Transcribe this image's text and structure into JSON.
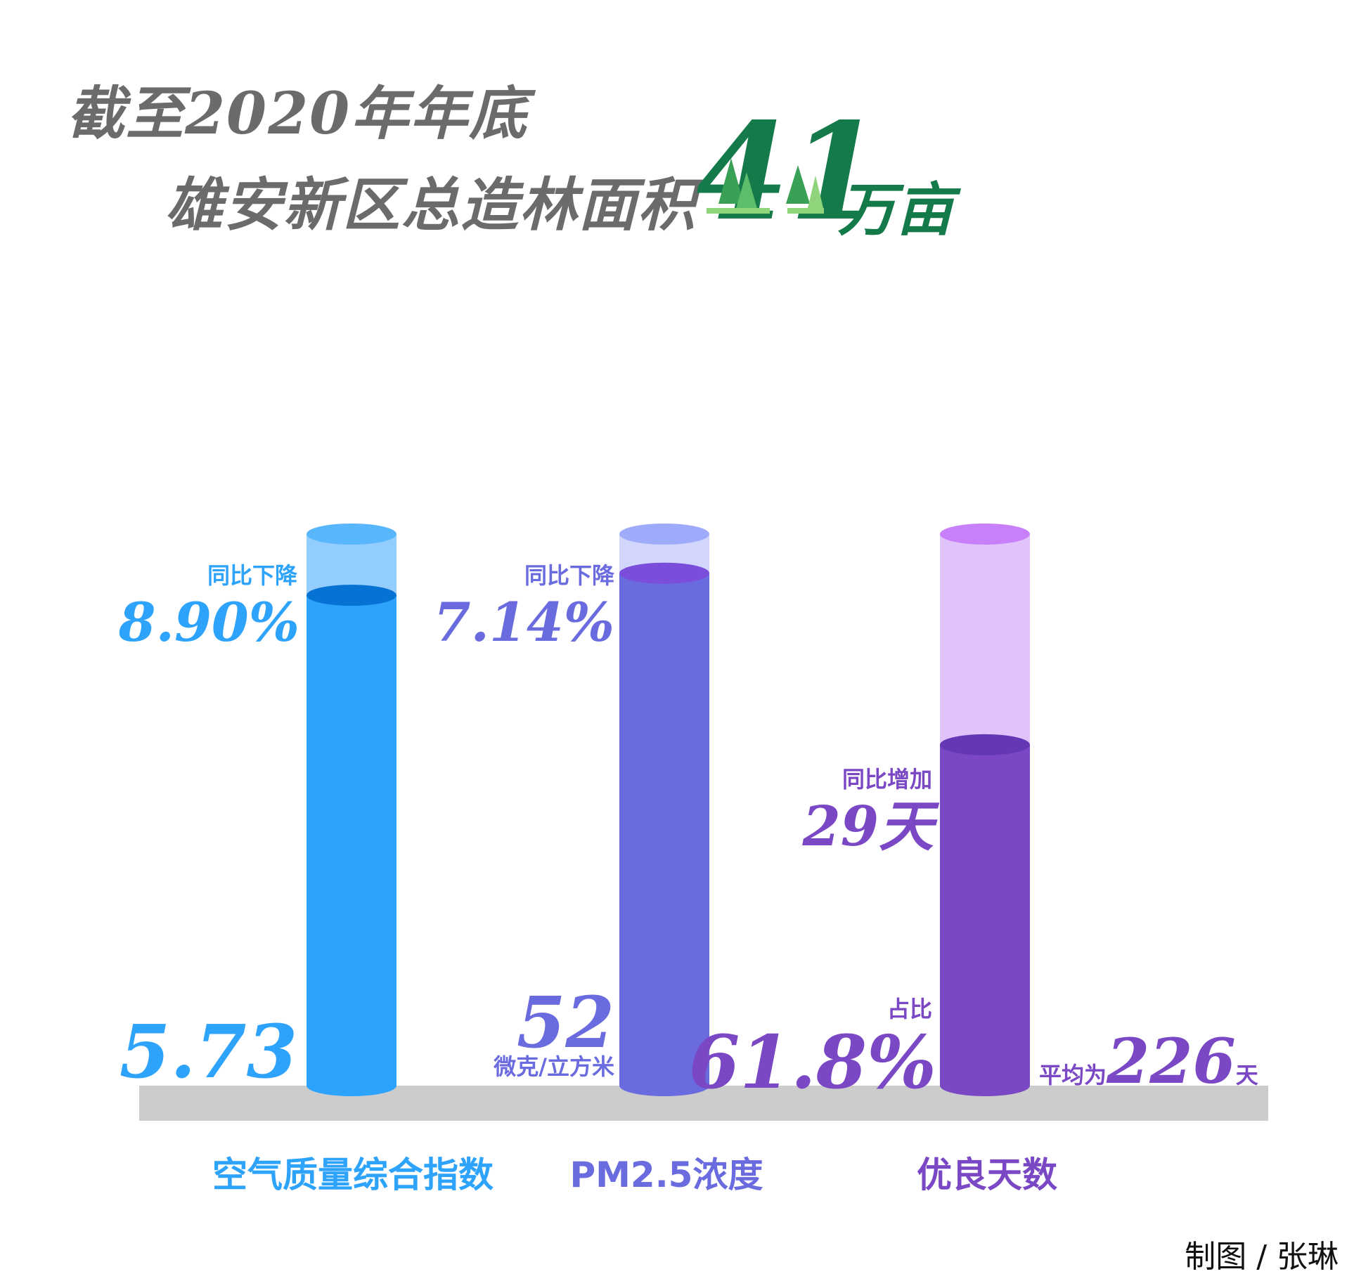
{
  "headline": {
    "line1": "截至2020年年底",
    "line2": "雄安新区总造林面积",
    "value": "41",
    "unit": "万亩"
  },
  "colors": {
    "title_gray": "#6b6b6b",
    "forest_green": "#157a4a",
    "blue": "#2ea3fb",
    "indigo": "#6a6bdf",
    "purple": "#7a48c4",
    "ground": "#cccccc"
  },
  "chart_data": {
    "type": "bar",
    "categories": [
      "空气质量综合指数",
      "PM2.5浓度",
      "优良天数"
    ],
    "series": [
      {
        "values": [
          5.73,
          52,
          61.8
        ],
        "display": [
          "5.73",
          "52",
          "61.8%"
        ]
      }
    ],
    "fill_fraction": [
      0.889,
      0.929,
      0.618
    ],
    "bars": [
      {
        "category": "空气质量综合指数",
        "value_label": "5.73",
        "change_caption": "同比下降",
        "change_value": "8.90%",
        "color": "#2ea3fb",
        "light_color": "#93cdfd",
        "cap_color": "#58b6fc",
        "top_color": "#0673d4"
      },
      {
        "category": "PM2.5浓度",
        "value_label": "52",
        "unit": "微克/立方米",
        "change_caption": "同比下降",
        "change_value": "7.14%",
        "color": "#6a6bdf",
        "light_color": "#d2d6fd",
        "cap_color": "#9eabfa",
        "top_color": "#7a4edb"
      },
      {
        "category": "优良天数",
        "share_caption": "占比",
        "value_label": "61.8%",
        "change_caption": "同比增加",
        "change_value": "29天",
        "avg_prefix": "平均为",
        "avg_value": "226",
        "avg_unit": "天",
        "color": "#7a48c4",
        "light_color": "#e1c3fb",
        "cap_color": "#c77ffa",
        "top_color": "#6438b5"
      }
    ]
  },
  "credit": "制图 / 张琳"
}
